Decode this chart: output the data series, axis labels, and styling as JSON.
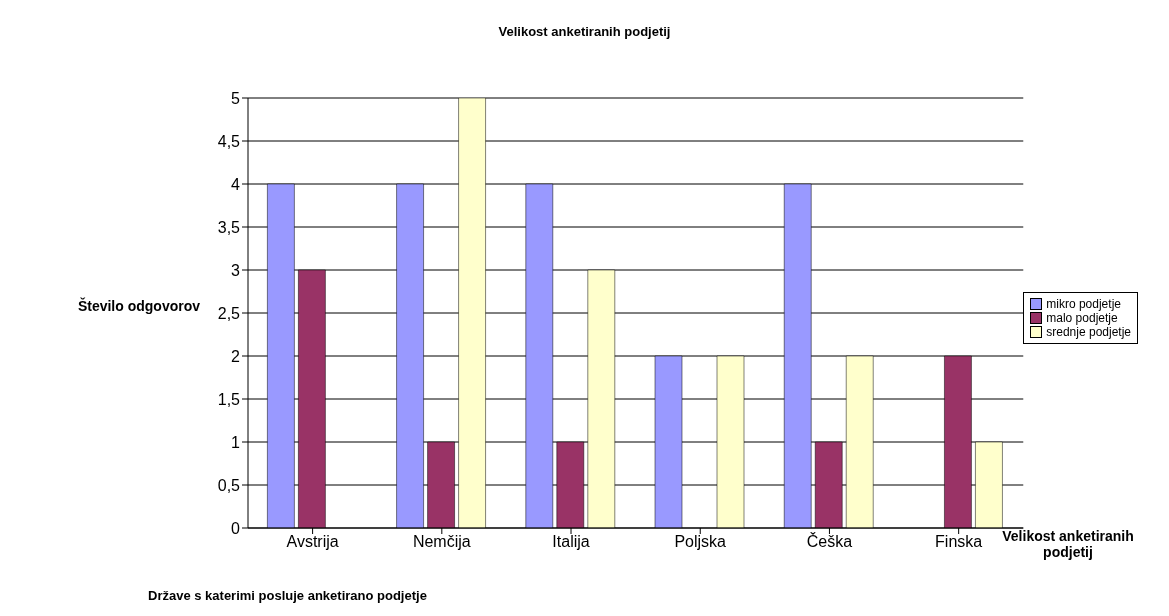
{
  "chart_data": {
    "type": "bar",
    "title": "Velikost anketiranih podjetij",
    "xlabel": "Države s katerimi posluje anketirano podjetje",
    "ylabel": "Število odgovorov",
    "annotations": [
      "Velikost anketiranih podjetij"
    ],
    "categories": [
      "Avstrija",
      "Nemčija",
      "Italija",
      "Poljska",
      "Češka",
      "Finska"
    ],
    "series": [
      {
        "name": "mikro podjetje",
        "color": "#9999ff",
        "values": [
          4,
          4,
          4,
          2,
          4,
          0
        ]
      },
      {
        "name": "malo podjetje",
        "color": "#993366",
        "values": [
          3,
          1,
          1,
          0,
          1,
          2
        ]
      },
      {
        "name": "srednje podjetje",
        "color": "#ffffcc",
        "values": [
          0,
          5,
          3,
          2,
          2,
          1
        ]
      }
    ],
    "ylim": [
      0,
      5
    ],
    "yticks": [
      0,
      {
        "value": 0.5,
        "label": "0,5"
      },
      1,
      {
        "value": 1.5,
        "label": "1,5"
      },
      2,
      {
        "value": 2.5,
        "label": "2,5"
      },
      3,
      {
        "value": 3.5,
        "label": "3,5"
      },
      4,
      {
        "value": 4.5,
        "label": "4,5"
      },
      5
    ],
    "grid": "y",
    "legend": "right"
  }
}
